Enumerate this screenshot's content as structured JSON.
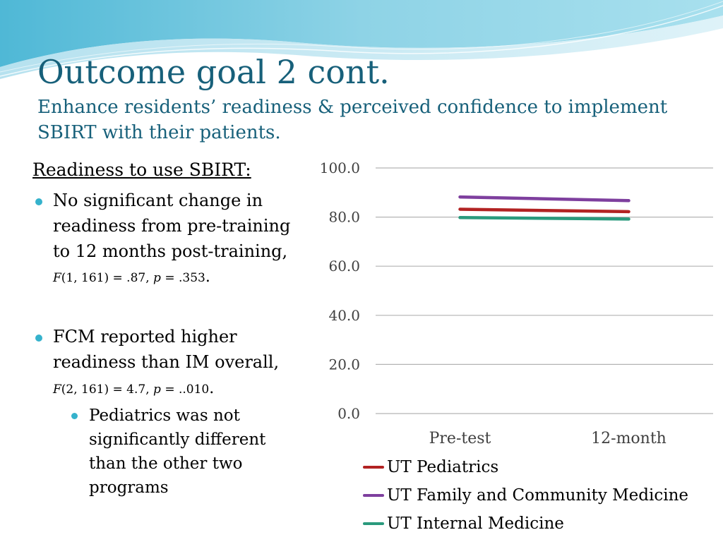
{
  "slide": {
    "title": "Outcome goal 2 cont.",
    "subtitle": "Enhance residents’ readiness & perceived confidence to implement SBIRT with their patients."
  },
  "left_panel": {
    "heading": "Readiness to use SBIRT:",
    "bullet1": {
      "text": "No significant change in readiness from pre-training to 12 months post-training,",
      "stat_f": "F",
      "stat_rest1": "(1, 161) = .87, ",
      "stat_p": "p",
      "stat_rest2": " = .353",
      "stat_end": "."
    },
    "bullet2": {
      "text": "FCM reported higher readiness than IM overall,",
      "stat_f": "F",
      "stat_rest1": "(2, 161) = 4.7, ",
      "stat_p": "p",
      "stat_rest2": " = ..010",
      "stat_end": "."
    },
    "sub_bullet": {
      "text": "Pediatrics was not significantly different than the other two programs"
    }
  },
  "colors": {
    "accent": "#35b2cc",
    "title": "#17607a",
    "grid": "#b3b3b3"
  },
  "chart_data": {
    "type": "line",
    "categories": [
      "Pre-test",
      "12-month"
    ],
    "series": [
      {
        "name": "UT Pediatrics",
        "values": [
          83.2,
          82.2
        ],
        "color": "#b22222"
      },
      {
        "name": "UT Family and Community Medicine",
        "values": [
          88.2,
          86.7
        ],
        "color": "#7e3f9e"
      },
      {
        "name": "UT Internal Medicine",
        "values": [
          79.8,
          79.2
        ],
        "color": "#2a9a7d"
      }
    ],
    "ylim": [
      0,
      100
    ],
    "yticks": [
      "0.0",
      "20.0",
      "40.0",
      "60.0",
      "80.0",
      "100.0"
    ],
    "ytick_values": [
      0,
      20,
      40,
      60,
      80,
      100
    ],
    "grid": true,
    "legend": "bottom",
    "title": "",
    "xlabel": "",
    "ylabel": ""
  }
}
